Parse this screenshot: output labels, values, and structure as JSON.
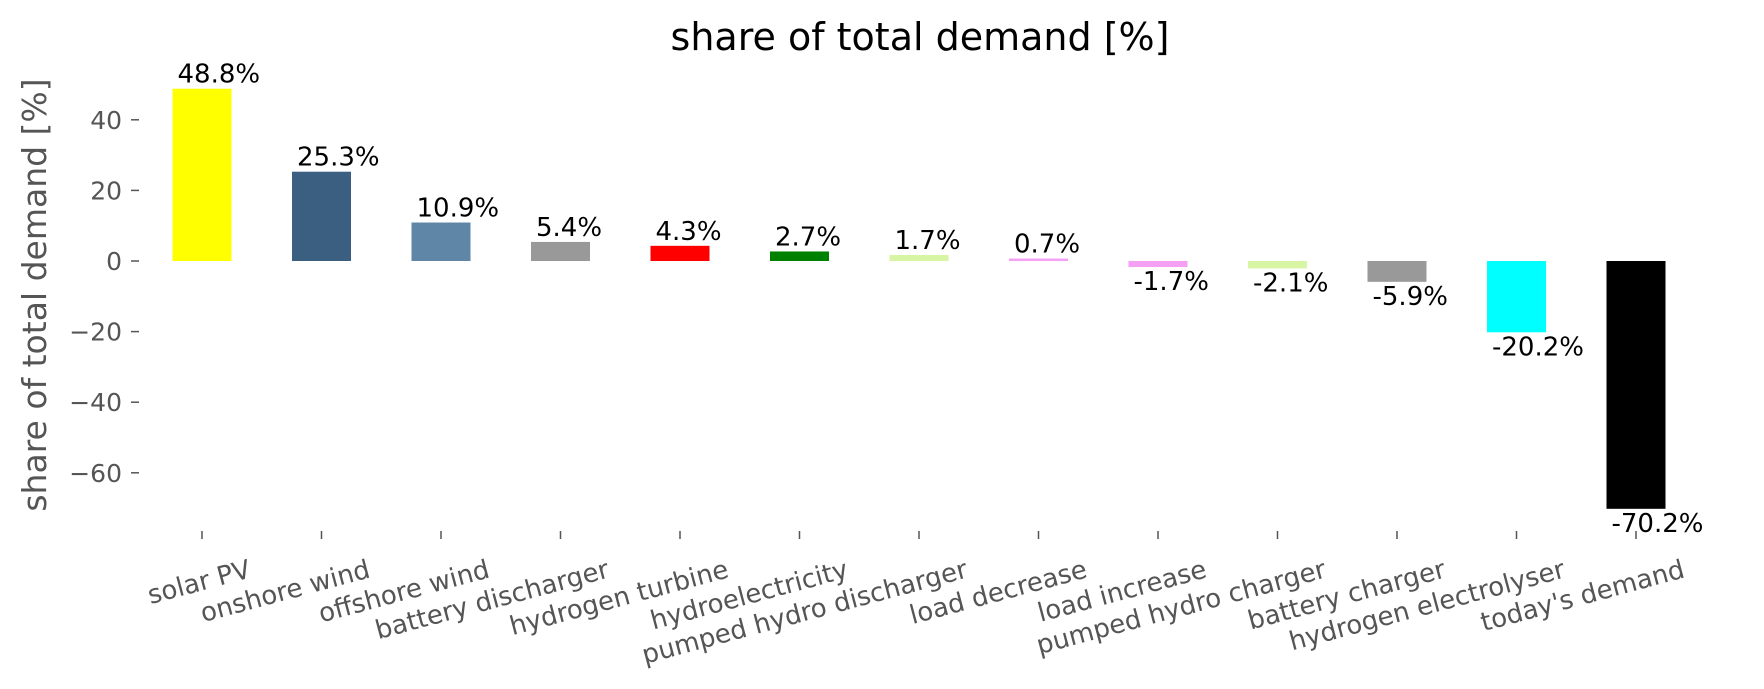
{
  "chart_data": {
    "type": "bar",
    "title": "share of total demand [%]",
    "xlabel": "",
    "ylabel": "share of total demand [%]",
    "ylim": [
      -78,
      55
    ],
    "yticks": [
      40,
      20,
      0,
      -20,
      -40,
      -60
    ],
    "ytick_labels": [
      "40",
      "20",
      "0",
      "−20",
      "−40",
      "−60"
    ],
    "grid": false,
    "categories": [
      "solar PV",
      "onshore wind",
      "offshore wind",
      "battery discharger",
      "hydrogen turbine",
      "hydroelectricity",
      "pumped hydro discharger",
      "load decrease",
      "load increase",
      "pumped hydro charger",
      "battery charger",
      "hydrogen electrolyser",
      "today's demand"
    ],
    "values": [
      48.8,
      25.3,
      10.9,
      5.4,
      4.3,
      2.7,
      1.7,
      0.7,
      -1.7,
      -2.1,
      -5.9,
      -20.2,
      -70.2
    ],
    "value_labels": [
      "48.8%",
      "25.3%",
      "10.9%",
      "5.4%",
      "4.3%",
      "2.7%",
      "1.7%",
      "0.7%",
      "-1.7%",
      "-2.1%",
      "-5.9%",
      "-20.2%",
      "-70.2%"
    ],
    "colors": [
      "#ffff00",
      "#3b5f80",
      "#5f86a6",
      "#999999",
      "#ff0000",
      "#008000",
      "#d7f5a3",
      "#f5a0f5",
      "#f5a0f5",
      "#d7f5a3",
      "#999999",
      "#00ffff",
      "#000000"
    ]
  }
}
